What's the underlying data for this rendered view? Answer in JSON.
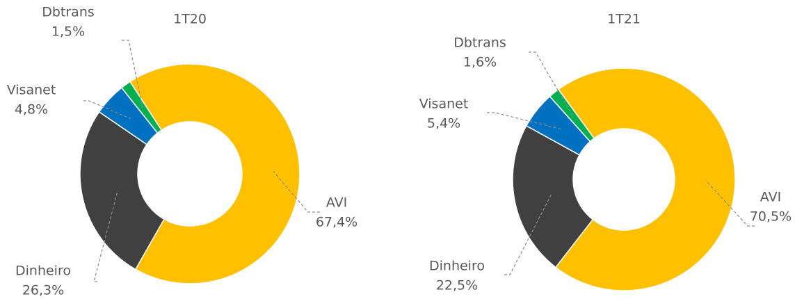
{
  "chart_data": [
    {
      "type": "donut",
      "title": "1T20",
      "categories": [
        "AVI",
        "Dinheiro",
        "Visanet",
        "Dbtrans"
      ],
      "values": [
        67.4,
        26.3,
        4.8,
        1.5
      ],
      "value_labels": [
        "67,4%",
        "26,3%",
        "4,8%",
        "1,5%"
      ],
      "colors": [
        "#FFC000",
        "#404040",
        "#0070C0",
        "#00B050"
      ]
    },
    {
      "type": "donut",
      "title": "1T21",
      "categories": [
        "AVI",
        "Dinheiro",
        "Visanet",
        "Dbtrans"
      ],
      "values": [
        70.5,
        22.5,
        5.4,
        1.6
      ],
      "value_labels": [
        "70,5%",
        "22,5%",
        "5,4%",
        "1,6%"
      ],
      "colors": [
        "#FFC000",
        "#404040",
        "#0070C0",
        "#00B050"
      ]
    }
  ]
}
